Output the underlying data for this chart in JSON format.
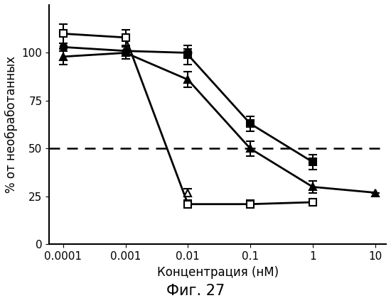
{
  "x": [
    0.0001,
    0.001,
    0.01,
    0.1,
    1,
    10
  ],
  "series": [
    {
      "label": "open_square",
      "marker": "s",
      "fillstyle": "none",
      "y": [
        110,
        108,
        21,
        21,
        22,
        null
      ],
      "yerr": [
        5,
        4,
        2,
        2,
        2,
        null
      ],
      "color": "#000000",
      "linewidth": 2.0
    },
    {
      "label": "filled_circle",
      "marker": "o",
      "fillstyle": "full",
      "y": [
        103,
        101,
        100,
        null,
        null,
        null
      ],
      "yerr": [
        2,
        2,
        2,
        null,
        null,
        null
      ],
      "color": "#000000",
      "linewidth": 2.0
    },
    {
      "label": "filled_square",
      "marker": "s",
      "fillstyle": "full",
      "y": [
        null,
        null,
        99,
        63,
        43,
        null
      ],
      "yerr": [
        null,
        null,
        5,
        4,
        4,
        null
      ],
      "color": "#000000",
      "linewidth": 2.0
    },
    {
      "label": "filled_triangle",
      "marker": "^",
      "fillstyle": "full",
      "y": [
        98,
        100,
        86,
        50,
        30,
        27
      ],
      "yerr": [
        4,
        3,
        4,
        4,
        3,
        null
      ],
      "color": "#000000",
      "linewidth": 2.0
    },
    {
      "label": "open_triangle",
      "marker": "^",
      "fillstyle": "none",
      "y": [
        null,
        null,
        27,
        null,
        null,
        null
      ],
      "yerr": [
        null,
        null,
        2,
        null,
        null,
        null
      ],
      "color": "#000000",
      "linewidth": 2.0
    }
  ],
  "hline_y": 50,
  "hline_style": "--",
  "hline_color": "#000000",
  "hline_linewidth": 1.8,
  "xlabel": "Концентрация (нМ)",
  "ylabel": "% от необработанных",
  "title": "Фиг. 27",
  "ylim": [
    0,
    125
  ],
  "yticks": [
    0,
    25,
    50,
    75,
    100
  ],
  "background_color": "#ffffff",
  "title_fontsize": 15,
  "axis_label_fontsize": 12,
  "tick_fontsize": 11,
  "marker_size": 7,
  "cap_size": 4,
  "elinewidth": 1.5,
  "markeredgewidth": 1.5
}
